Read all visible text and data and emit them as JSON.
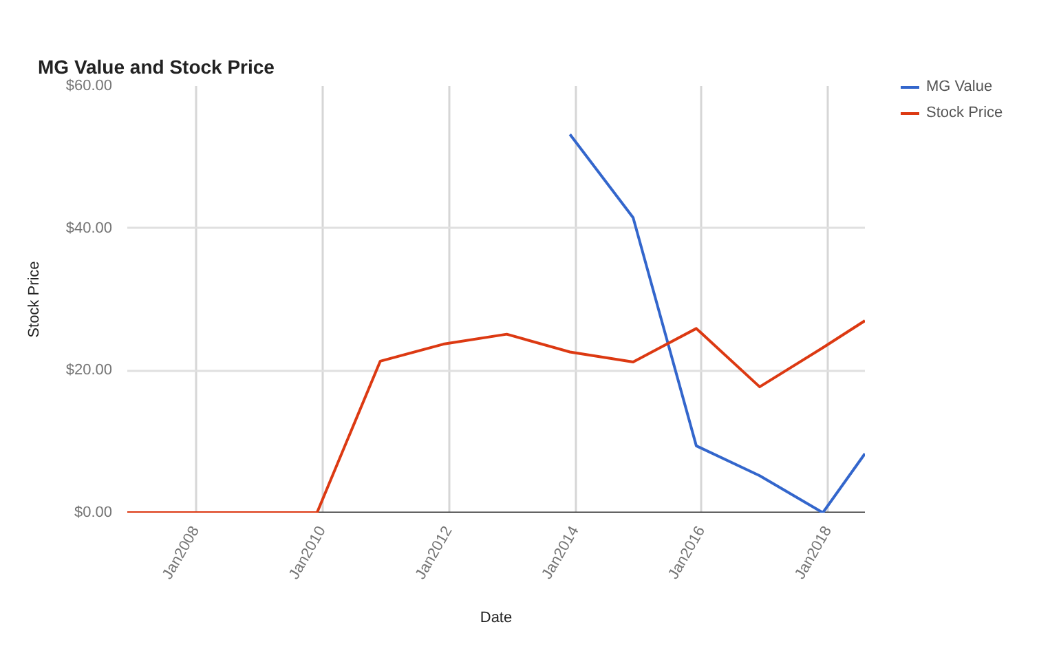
{
  "chart_data": {
    "type": "line",
    "title": "MG Value and Stock Price",
    "xlabel": "Date",
    "ylabel": "Stock Price",
    "x": [
      "2006-12",
      "2007-12",
      "2008-12",
      "2009-12",
      "2010-12",
      "2011-12",
      "2012-12",
      "2013-12",
      "2014-12",
      "2015-12",
      "2016-12",
      "2017-12",
      "2018-08"
    ],
    "series": [
      {
        "name": "MG Value",
        "color": "#3366cc",
        "values": [
          null,
          null,
          null,
          null,
          null,
          null,
          null,
          53.2,
          41.5,
          9.4,
          5.2,
          0,
          8.3
        ]
      },
      {
        "name": "Stock Price",
        "color": "#dc3912",
        "values": [
          0,
          0,
          0,
          0,
          21.3,
          23.7,
          25.1,
          22.6,
          21.2,
          25.9,
          17.7,
          23.2,
          27.0
        ]
      }
    ],
    "xlim": [
      "2006-12",
      "2018-08"
    ],
    "xticks": [
      {
        "value": "2008-01",
        "label": "Jan2008"
      },
      {
        "value": "2010-01",
        "label": "Jan2010"
      },
      {
        "value": "2012-01",
        "label": "Jan2012"
      },
      {
        "value": "2014-01",
        "label": "Jan2014"
      },
      {
        "value": "2016-01",
        "label": "Jan2016"
      },
      {
        "value": "2018-01",
        "label": "Jan2018"
      }
    ],
    "ylim": [
      0,
      60
    ],
    "yticks": [
      {
        "value": 0,
        "label": "$0.00"
      },
      {
        "value": 20,
        "label": "$20.00"
      },
      {
        "value": 40,
        "label": "$40.00"
      },
      {
        "value": 60,
        "label": "$60.00"
      }
    ],
    "grid": true,
    "legend": "top right"
  }
}
